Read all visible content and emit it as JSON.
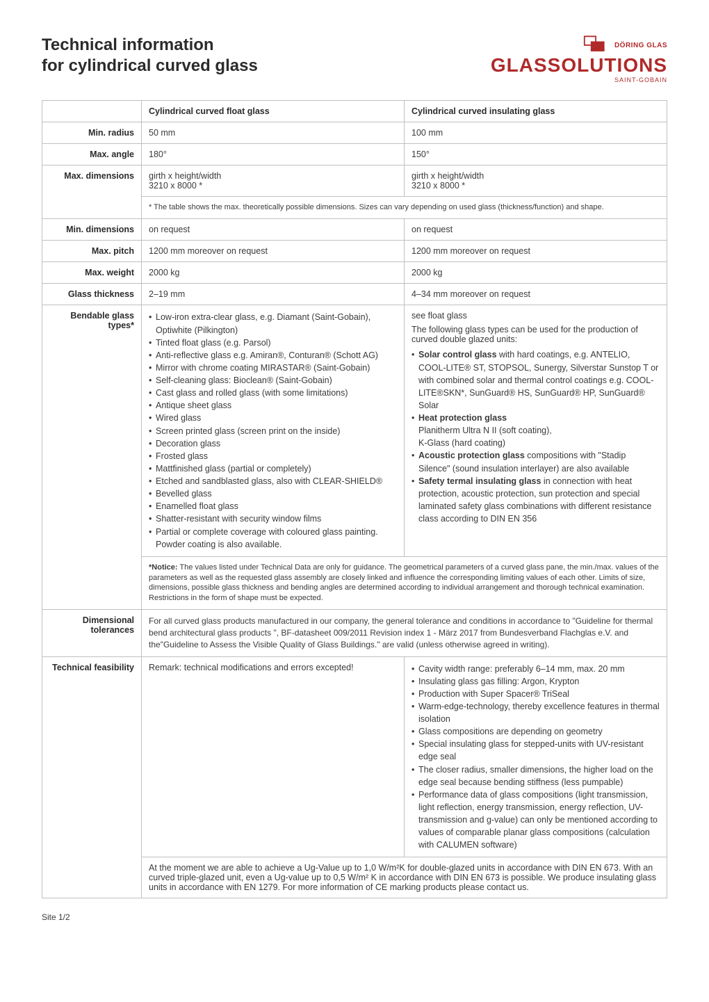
{
  "header": {
    "title_line1": "Technical information",
    "title_line2": "for cylindrical curved glass",
    "logo_top": "DÖRING GLAS",
    "logo_main": "GLASSOLUTIONS",
    "logo_sub": "SAINT-GOBAIN",
    "logo_fill": "#b02a2a"
  },
  "columns": {
    "col1": "Cylindrical curved float glass",
    "col2": "Cylindrical curved insulating glass"
  },
  "rows": {
    "min_radius": {
      "label": "Min. radius",
      "c1": "50 mm",
      "c2": "100 mm"
    },
    "max_angle": {
      "label": "Max. angle",
      "c1": "180°",
      "c2": "150°"
    },
    "max_dimensions": {
      "label": "Max. dimensions",
      "c1_line1": "girth x height/width",
      "c1_line2": "3210 x 8000 *",
      "c2_line1": "girth x height/width",
      "c2_line2": "3210 x 8000 *",
      "footnote": "* The table shows the max. theoretically possible dimensions. Sizes can vary depending on used glass (thickness/function) and shape."
    },
    "min_dimensions": {
      "label": "Min. dimensions",
      "c1": "on request",
      "c2": "on request"
    },
    "max_pitch": {
      "label": "Max. pitch",
      "c1": "1200 mm moreover on request",
      "c2": "1200 mm moreover on request"
    },
    "max_weight": {
      "label": "Max. weight",
      "c1": "2000 kg",
      "c2": "2000 kg"
    },
    "glass_thickness": {
      "label": "Glass thickness",
      "c1": "2–19 mm",
      "c2": "4–34 mm moreover on request"
    },
    "bendable": {
      "label": "Bendable glass types*",
      "c1_items": [
        "Low-iron extra-clear glass, e.g. Diamant (Saint-Gobain), Optiwhite (Pilkington)",
        "Tinted float glass (e.g. Parsol)",
        "Anti-reflective glass e.g. Amiran®, Conturan® (Schott AG)",
        "Mirror with chrome coating MIRASTAR® (Saint-Gobain)",
        "Self-cleaning glass: Bioclean® (Saint-Gobain)",
        "Cast glass and rolled glass (with some limitations)",
        "Antique sheet glass",
        "Wired glass",
        "Screen printed glass (screen print on the inside)",
        "Decoration glass",
        "Frosted glass",
        "Mattfinished glass (partial or completely)",
        "Etched and sandblasted glass, also with CLEAR-SHIELD®",
        "Bevelled glass",
        "Enamelled float glass",
        "Shatter-resistant with security window films",
        "Partial or complete coverage with coloured glass painting. Powder coating is also available."
      ],
      "c2_intro1": "see float glass",
      "c2_intro2": "The following glass types can be used for the production of curved double glazed units:",
      "c2_items": [
        {
          "b": "Solar control glass",
          "t": " with hard coatings, e.g. ANTELIO, COOL-LITE® ST, STOPSOL, Sunergy, Silverstar Sunstop T or with combined solar and thermal control coatings e.g. COOL-LITE®SKN*, SunGuard® HS, SunGuard® HP, SunGuard® Solar"
        },
        {
          "b": "Heat protection glass",
          "t": ""
        },
        {
          "plain": "Planitherm Ultra N II (soft coating),"
        },
        {
          "plain": "K-Glass (hard coating)"
        },
        {
          "b": "Acoustic protection glass",
          "t": " compositions with \"Stadip Silence\" (sound insulation interlayer) are also available"
        },
        {
          "b": "Safety termal insulating glass",
          "t": " in connection with heat protection, acoustic protection, sun protection and special laminated safety glass combinations with different resistance class according to DIN EN 356"
        }
      ],
      "notice_label": "*Notice:",
      "notice": " The values listed under Technical Data are only for guidance. The geometrical parameters of a curved glass pane, the min./max. values of the parameters as well as the requested glass assembly are closely linked and influence the corresponding limiting values of each other. Limits of size, dimensions, possible glass thickness and bending angles are determined according to individual arrangement and thorough technical examination. Restrictions in the form of shape must be expected."
    },
    "dim_tol": {
      "label": "Dimensional tolerances",
      "text": "For all curved glass products manufactured in our company, the general tolerance and conditions in accordance to \"Guideline for thermal bend architectural glass products \", BF-datasheet 009/2011 Revision index 1 - März 2017 from Bundesverband Flachglas e.V. and the\"Guideline to Assess the Visible Quality of Glass Buildings.\" are valid (unless otherwise agreed in writing)."
    },
    "tech_feas": {
      "label": "Technical feasibility",
      "c1": "Remark: technical modifications and errors excepted!",
      "c2_items": [
        "Cavity width range: preferably 6–14 mm, max. 20 mm",
        "Insulating glass gas filling: Argon, Krypton",
        "Production with Super Spacer® TriSeal",
        "Warm-edge-technology, thereby excellence features in thermal isolation",
        "Glass compositions are depending on geometry",
        "Special insulating glass for stepped-units with UV-resistant edge seal",
        "The closer radius, smaller dimensions, the higher load on the edge seal because bending stiffness (less pumpable)",
        "Performance data of glass compositions (light transmission, light reflection, energy transmission, energy reflection, UV-transmission and g-value) can only be mentioned according to values of comparable planar glass compositions (calculation with CALUMEN software)"
      ]
    },
    "ug_note": {
      "text": "At the moment we are able to achieve a Ug-Value up to 1,0 W/m²K for double-glazed units in accordance with DIN EN 673. With an curved triple-glazed unit, even a Ug-value up to 0,5 W/m² K in accordance with DIN EN 673 is possible. We produce insulating glass units in accordance with EN 1279. For more information of CE marking products please contact us."
    }
  },
  "page_footer": "Site 1/2",
  "style": {
    "body_bg": "#ffffff",
    "text_color": "#3a3a3a",
    "heading_color": "#2b2b2b",
    "border_color": "#c0c0c0",
    "accent": "#b02a2a",
    "base_fontsize": 12.5
  }
}
